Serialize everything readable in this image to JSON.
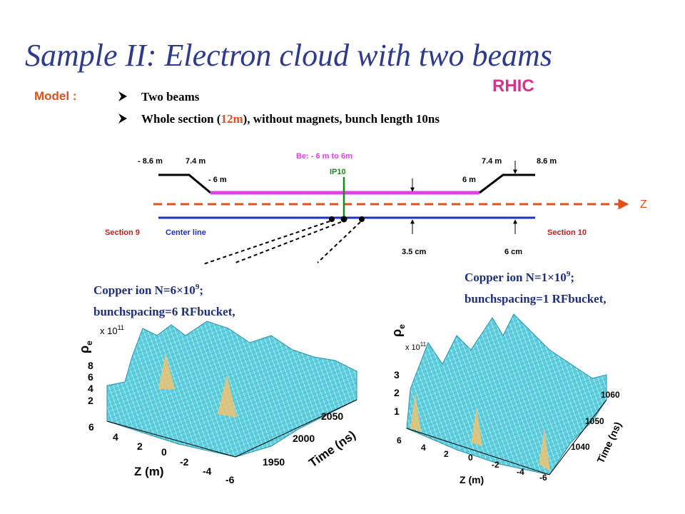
{
  "title": "Sample II: Electron cloud with two beams",
  "model_label": "Model :",
  "rhic": "RHIC",
  "bullets": [
    {
      "text": "Two beams"
    },
    {
      "before": "Whole section (",
      "highlight": "12m",
      "after": "), without magnets, bunch length 10ns"
    }
  ],
  "diagram": {
    "left_end": "- 8.6 m",
    "left_taper": "7.4 m",
    "left_be": "- 6 m",
    "be_label": "Be: - 6 m to 6m",
    "ip": "IP10",
    "right_be": "6 m",
    "right_taper": "7.4 m",
    "right_end": "8.6  m",
    "z_axis": "Z",
    "section_left": "Section 9",
    "center_line": "Center line",
    "radius_inner": "3.5 cm",
    "radius_outer": "6 cm",
    "section_right": "Section 10"
  },
  "plots": [
    {
      "caption": {
        "main": "Copper ion N=6×10",
        "exponent": "9",
        "end": ";",
        "line2": "bunchspacing=6 RFbucket,"
      },
      "z_label": "ρ",
      "z_label_sub": "e",
      "multiplier": "x 10",
      "multiplier_exp": "11",
      "z_ticks": [
        "8",
        "6",
        "4",
        "2"
      ],
      "x_label": "Z (m)",
      "x_ticks": [
        "6",
        "4",
        "2",
        "0",
        "-2",
        "-4",
        "-6"
      ],
      "t_label": "Time (ns)",
      "t_ticks": [
        "1950",
        "2000",
        "2050"
      ]
    },
    {
      "caption": {
        "main": "Copper ion N=1×10",
        "exponent": "9",
        "end": ";",
        "line2": "bunchspacing=1 RFbucket,"
      },
      "z_label": "ρ",
      "z_label_sub": "e",
      "multiplier": "x 10",
      "multiplier_exp": "11",
      "z_ticks": [
        "3",
        "2",
        "1"
      ],
      "x_label": "Z (m)",
      "x_ticks": [
        "6",
        "4",
        "2",
        "0",
        "-2",
        "-4",
        "-6"
      ],
      "t_label": "Time (ns)",
      "t_ticks": [
        "1040",
        "1050",
        "1060"
      ]
    }
  ]
}
